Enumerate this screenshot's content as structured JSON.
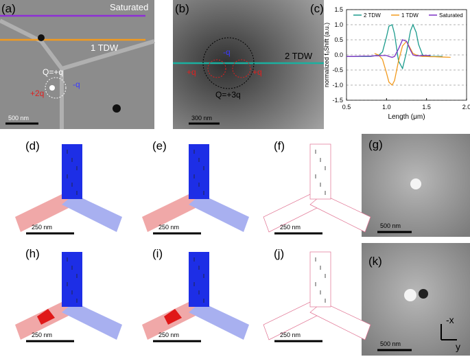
{
  "panels": [
    {
      "label": "(a)",
      "notes": [
        "Saturated",
        "1 TDW",
        "Q=+q",
        "-q",
        "+2q"
      ],
      "scale": "500 nm"
    },
    {
      "label": "(b)",
      "notes": [
        "2 TDW",
        "-q",
        "+q",
        "+q",
        "Q=+3q"
      ],
      "scale": "300 nm"
    },
    {
      "label": "(c)"
    },
    {
      "label": "(d)",
      "scale": "250 nm"
    },
    {
      "label": "(e)",
      "scale": "250 nm"
    },
    {
      "label": "(f)",
      "scale": "250 nm"
    },
    {
      "label": "(g)",
      "scale": "500 nm"
    },
    {
      "label": "(h)",
      "scale": "250 nm"
    },
    {
      "label": "(i)",
      "scale": "250 nm"
    },
    {
      "label": "(j)",
      "scale": "250 nm"
    },
    {
      "label": "(k)",
      "scale": "500 nm",
      "notes": [
        "-x",
        "y"
      ]
    }
  ],
  "chart_data": {
    "type": "line",
    "x_label": "Length (μm)",
    "y_label": "normalized f₀Shift (a.u.)",
    "x": [
      0.5,
      0.6,
      0.7,
      0.8,
      0.85,
      0.9,
      0.95,
      1.0,
      1.03,
      1.07,
      1.1,
      1.15,
      1.2,
      1.25,
      1.3,
      1.33,
      1.37,
      1.4,
      1.45,
      1.5,
      1.55,
      1.6,
      1.7,
      1.8
    ],
    "series": [
      {
        "name": "2 TDW",
        "color": "#1b9b8c",
        "values": [
          -0.05,
          -0.05,
          -0.05,
          -0.05,
          -0.03,
          -0.02,
          0.1,
          0.6,
          0.95,
          1.0,
          0.7,
          -0.2,
          -0.45,
          0.1,
          0.8,
          1.0,
          0.75,
          0.35,
          0.0,
          -0.05,
          -0.05,
          -0.05,
          -0.05,
          null
        ]
      },
      {
        "name": "1 TDW",
        "color": "#f29a1e",
        "values": [
          null,
          null,
          null,
          null,
          0.05,
          0.0,
          -0.15,
          -0.6,
          -0.9,
          -1.0,
          -0.85,
          -0.2,
          0.3,
          0.45,
          0.2,
          0.05,
          0.0,
          -0.03,
          -0.05,
          -0.05,
          -0.06,
          -0.06,
          -0.07,
          -0.08
        ]
      },
      {
        "name": "Saturated",
        "color": "#7b2fc4",
        "values": [
          -0.05,
          -0.05,
          -0.04,
          -0.04,
          -0.03,
          -0.03,
          -0.02,
          -0.02,
          -0.05,
          -0.08,
          -0.05,
          0.2,
          0.5,
          0.45,
          0.15,
          0.0,
          -0.03,
          -0.03,
          -0.02,
          -0.02,
          -0.02,
          null,
          null,
          null
        ]
      }
    ],
    "xlim": [
      0.5,
      2.0
    ],
    "xticks": [
      0.5,
      {
        "value": 1,
        "label": "1.0"
      },
      1.5,
      {
        "value": 2,
        "label": "2.0"
      }
    ],
    "ylim": [
      -1.5,
      1.5
    ],
    "yticks": [
      -1.5,
      {
        "value": -1,
        "label": "-1.0"
      },
      -0.5,
      {
        "value": 0,
        "label": "0.0"
      },
      0.5,
      {
        "value": 1,
        "label": "1.0"
      },
      1.5
    ],
    "grid": true
  }
}
